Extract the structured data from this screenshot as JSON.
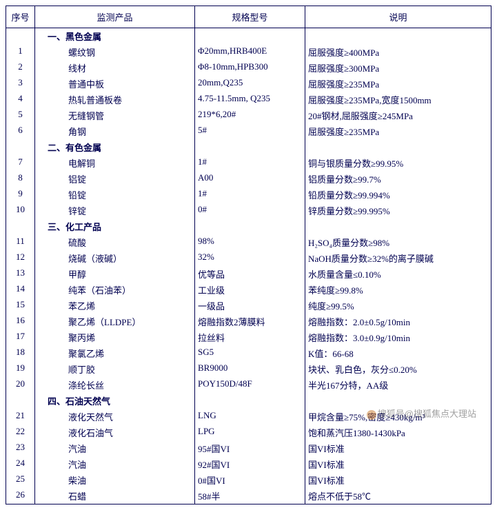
{
  "headers": {
    "seq": "序号",
    "product": "监测产品",
    "spec": "规格型号",
    "desc": "说明"
  },
  "sections": [
    {
      "title": "一、黑色金属",
      "rows": [
        {
          "n": "1",
          "p": "螺纹钢",
          "s": "Φ20mm,HRB400E",
          "d": "屈服强度≥400MPa"
        },
        {
          "n": "2",
          "p": "线材",
          "s": "Φ8-10mm,HPB300",
          "d": "屈服强度≥300MPa"
        },
        {
          "n": "3",
          "p": "普通中板",
          "s": "20mm,Q235",
          "d": "屈服强度≥235MPa"
        },
        {
          "n": "4",
          "p": "热轧普通板卷",
          "s": "4.75-11.5mm, Q235",
          "d": "屈服强度≥235MPa,宽度1500mm"
        },
        {
          "n": "5",
          "p": "无缝钢管",
          "s": "219*6,20#",
          "d": "20#钢材,屈服强度≥245MPa"
        },
        {
          "n": "6",
          "p": "角钢",
          "s": "5#",
          "d": "屈服强度≥235MPa"
        }
      ]
    },
    {
      "title": "二、有色金属",
      "rows": [
        {
          "n": "7",
          "p": "电解铜",
          "s": "1#",
          "d": "铜与银质量分数≥99.95%"
        },
        {
          "n": "8",
          "p": "铝锭",
          "s": "A00",
          "d": "铝质量分数≥99.7%"
        },
        {
          "n": "9",
          "p": "铅锭",
          "s": "1#",
          "d": "铅质量分数≥99.994%"
        },
        {
          "n": "10",
          "p": "锌锭",
          "s": "0#",
          "d": "锌质量分数≥99.995%"
        }
      ]
    },
    {
      "title": "三、化工产品",
      "rows": [
        {
          "n": "11",
          "p": "硫酸",
          "s": "98%",
          "d": "H₂SO₄质量分数≥98%"
        },
        {
          "n": "12",
          "p": "烧碱（液碱）",
          "s": "32%",
          "d": "NaOH质量分数≥32%的离子膜碱"
        },
        {
          "n": "13",
          "p": "甲醇",
          "s": "优等品",
          "d": "水质量含量≤0.10%"
        },
        {
          "n": "14",
          "p": "纯苯（石油苯）",
          "s": "工业级",
          "d": "苯纯度≥99.8%"
        },
        {
          "n": "15",
          "p": "苯乙烯",
          "s": "一级品",
          "d": "纯度≥99.5%"
        },
        {
          "n": "16",
          "p": "聚乙烯（LLDPE）",
          "s": "熔融指数2薄膜料",
          "d": "熔融指数：2.0±0.5g/10min"
        },
        {
          "n": "17",
          "p": "聚丙烯",
          "s": "拉丝料",
          "d": "熔融指数：3.0±0.9g/10min"
        },
        {
          "n": "18",
          "p": "聚氯乙烯",
          "s": "SG5",
          "d": "K值：66-68"
        },
        {
          "n": "19",
          "p": "顺丁胶",
          "s": "BR9000",
          "d": "块状、乳白色，灰分≤0.20%"
        },
        {
          "n": "20",
          "p": "涤纶长丝",
          "s": "POY150D/48F",
          "d": "半光167分特，AA级"
        }
      ]
    },
    {
      "title": "四、石油天然气",
      "rows": [
        {
          "n": "21",
          "p": "液化天然气",
          "s": "LNG",
          "d": "甲烷含量≥75%,密度≥430kg/m³"
        },
        {
          "n": "22",
          "p": "液化石油气",
          "s": "LPG",
          "d": "饱和蒸汽压1380-1430kPa"
        },
        {
          "n": "23",
          "p": "汽油",
          "s": "95#国VI",
          "d": "国VI标准"
        },
        {
          "n": "24",
          "p": "汽油",
          "s": "92#国VI",
          "d": "国VI标准"
        },
        {
          "n": "25",
          "p": "柴油",
          "s": "0#国VI",
          "d": "国VI标准"
        },
        {
          "n": "26",
          "p": "石蜡",
          "s": "58#半",
          "d": "熔点不低于58℃"
        }
      ]
    }
  ],
  "watermark": "搜狐号@搜狐焦点大理站"
}
